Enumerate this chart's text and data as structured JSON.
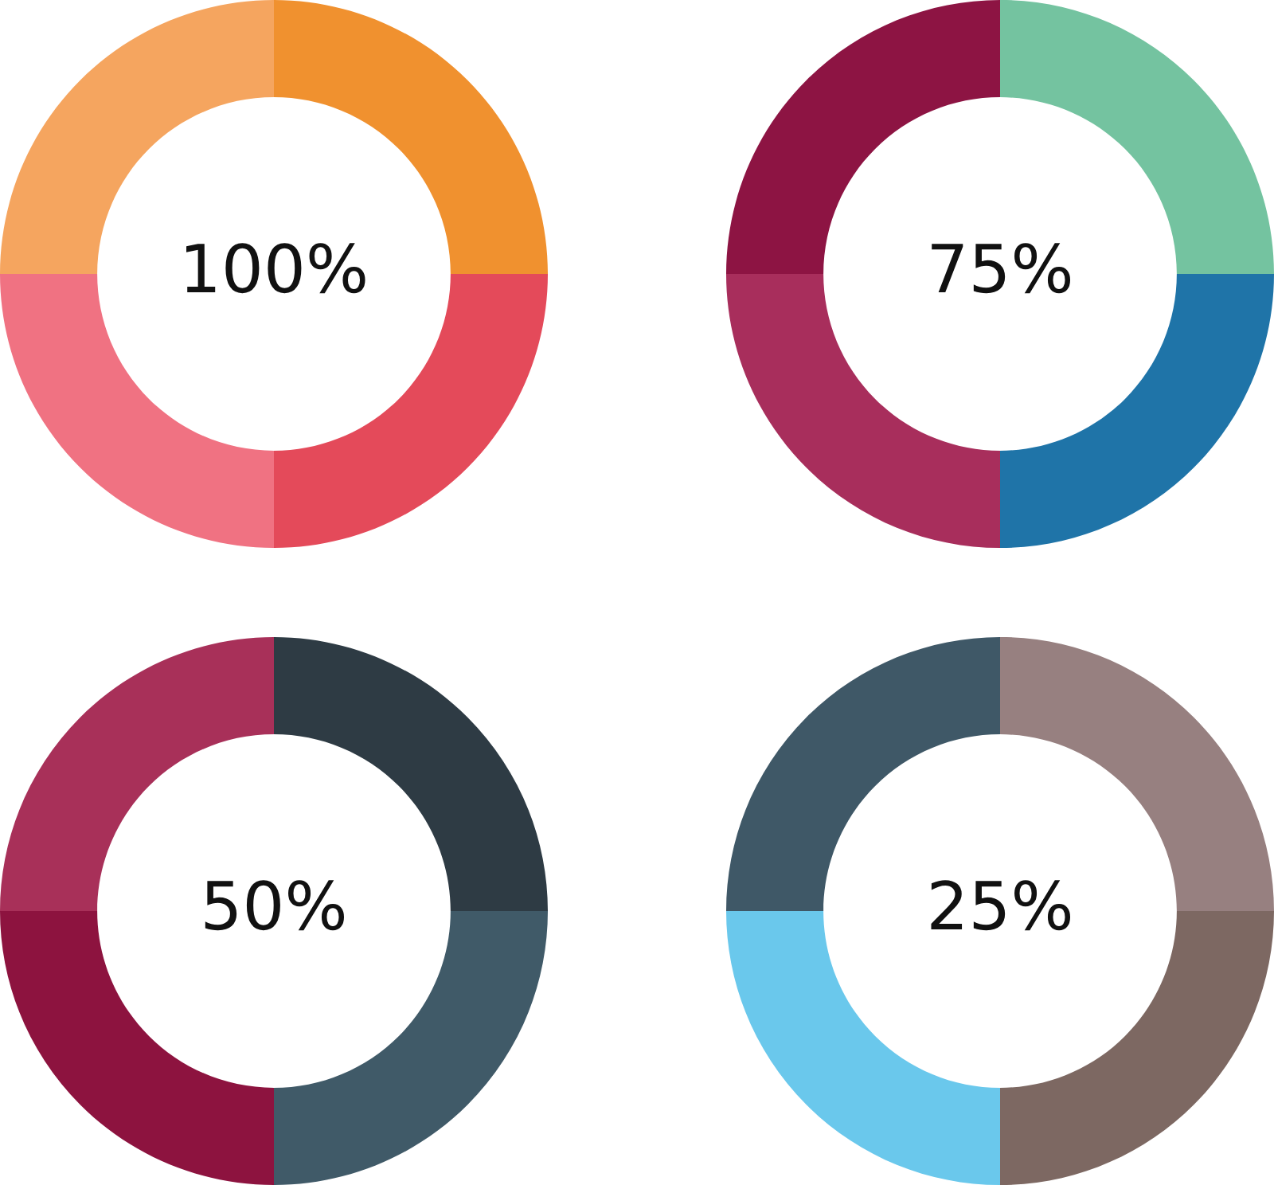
{
  "chart_data": [
    {
      "type": "donut",
      "categories": [
        null,
        null,
        null,
        null
      ],
      "values": [
        25,
        25,
        25,
        25
      ],
      "colors": [
        "#f0912f",
        "#e44a5a",
        "#f07282",
        "#f5a55f"
      ],
      "annotations": [
        "100%"
      ]
    },
    {
      "type": "donut",
      "categories": [
        null,
        null,
        null,
        null
      ],
      "values": [
        25,
        25,
        25,
        25
      ],
      "colors": [
        "#74c3a0",
        "#1f74a8",
        "#a82e5c",
        "#8d1443"
      ],
      "annotations": [
        "75%"
      ]
    },
    {
      "type": "donut",
      "categories": [
        null,
        null,
        null,
        null
      ],
      "values": [
        25,
        25,
        25,
        25
      ],
      "colors": [
        "#2e3b44",
        "#405a68",
        "#8d133f",
        "#a83059"
      ],
      "annotations": [
        "50%"
      ]
    },
    {
      "type": "donut",
      "categories": [
        null,
        null,
        null,
        null
      ],
      "values": [
        25,
        25,
        25,
        25
      ],
      "colors": [
        "#978080",
        "#7d6862",
        "#6ac8ec",
        "#3f5867"
      ],
      "annotations": [
        "25%"
      ]
    }
  ]
}
